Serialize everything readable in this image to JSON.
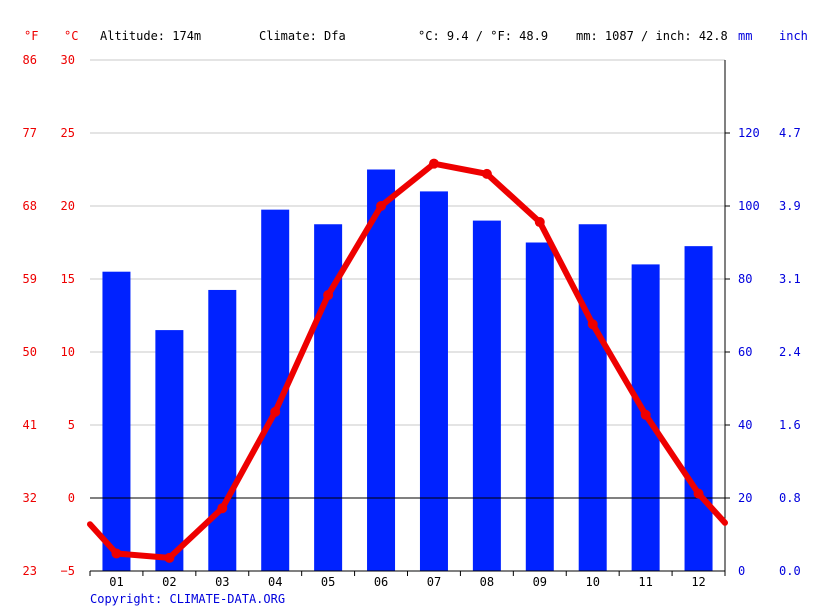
{
  "header": {
    "unit_f": "°F",
    "unit_c": "°C",
    "altitude": "Altitude: 174m",
    "climate": "Climate: Dfa",
    "temp_summary": "°C: 9.4 / °F: 48.9",
    "precip_summary": "mm: 1087 / inch: 42.8",
    "unit_mm": "mm",
    "unit_inch": "inch"
  },
  "footer": {
    "copyright": "Copyright: CLIMATE-DATA.ORG"
  },
  "chart_data": {
    "type": "bar+line",
    "categories": [
      "01",
      "02",
      "03",
      "04",
      "05",
      "06",
      "07",
      "08",
      "09",
      "10",
      "11",
      "12"
    ],
    "series": [
      {
        "type": "bar",
        "axis": "precipitation",
        "color": "#0022ff",
        "values": [
          82,
          66,
          77,
          99,
          95,
          110,
          104,
          96,
          90,
          95,
          84,
          89
        ]
      },
      {
        "type": "line",
        "axis": "temperature",
        "color": "#ee0000",
        "values": [
          -3.8,
          -4.1,
          -0.7,
          5.9,
          13.9,
          20.0,
          22.9,
          22.2,
          18.9,
          11.9,
          5.7,
          0.3
        ]
      }
    ],
    "line_ends": {
      "start": -1.8,
      "end": -1.7
    },
    "temperature_axis": {
      "c_range": [
        -5,
        30
      ],
      "c_ticks": [
        "30",
        "25",
        "20",
        "15",
        "10",
        "5",
        "0",
        "−5"
      ],
      "f_ticks": [
        "86",
        "77",
        "68",
        "59",
        "50",
        "41",
        "32",
        "23"
      ]
    },
    "precipitation_axis": {
      "mm_range": [
        0,
        140
      ],
      "mm_ticks": [
        "120",
        "100",
        "80",
        "60",
        "40",
        "20",
        "0"
      ],
      "inch_ticks": [
        "4.7",
        "3.9",
        "3.1",
        "2.4",
        "1.6",
        "0.8",
        "0.0"
      ]
    },
    "grid": true,
    "colors": {
      "temperature": "#ee0000",
      "precipitation": "#0022ff",
      "grid": "#c8c8c8"
    }
  }
}
